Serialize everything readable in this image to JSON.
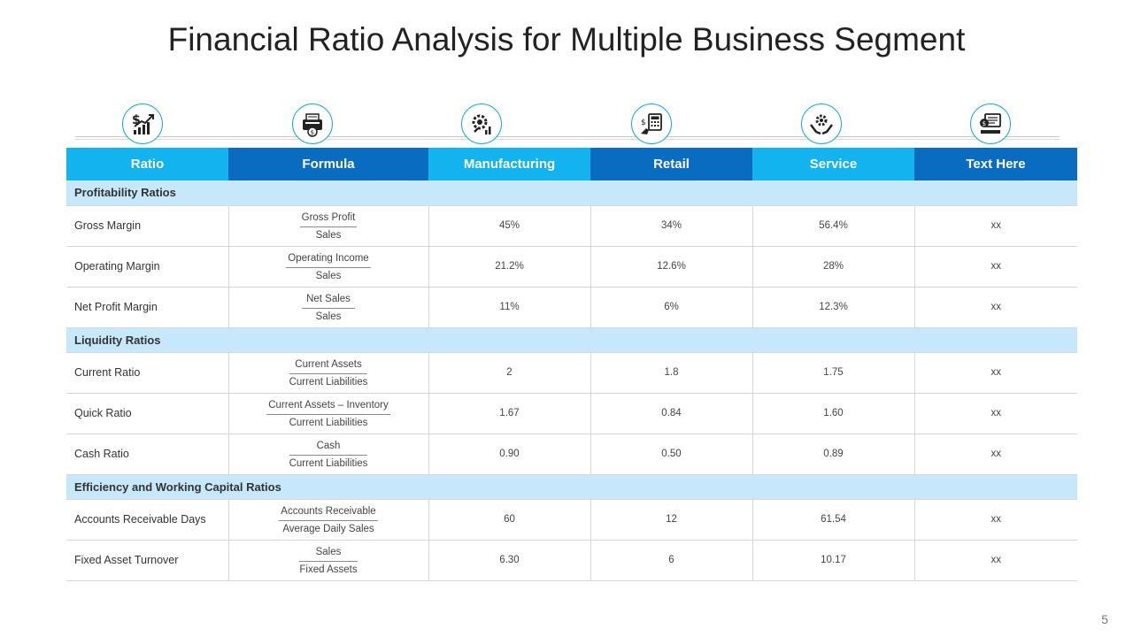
{
  "slide": {
    "title": "Financial Ratio Analysis for Multiple Business Segment",
    "page_number": "5"
  },
  "icons": [
    "dollar-growth-icon",
    "cash-register-icon",
    "settings-chart-icon",
    "calculator-hand-icon",
    "gear-hand-icon",
    "monitor-money-icon"
  ],
  "table": {
    "headers": [
      "Ratio",
      "Formula",
      "Manufacturing",
      "Retail",
      "Service",
      "Text Here"
    ],
    "sections": [
      {
        "title": "Profitability Ratios",
        "rows": [
          {
            "name": "Gross Margin",
            "numerator": "Gross Profit",
            "denominator": "Sales",
            "manufacturing": "45%",
            "retail": "34%",
            "service": "56.4%",
            "other": "xx"
          },
          {
            "name": "Operating Margin",
            "numerator": "Operating Income",
            "denominator": "Sales",
            "manufacturing": "21.2%",
            "retail": "12.6%",
            "service": "28%",
            "other": "xx"
          },
          {
            "name": "Net Profit Margin",
            "numerator": "Net Sales",
            "denominator": "Sales",
            "manufacturing": "11%",
            "retail": "6%",
            "service": "12.3%",
            "other": "xx"
          }
        ]
      },
      {
        "title": "Liquidity Ratios",
        "rows": [
          {
            "name": "Current Ratio",
            "numerator": "Current Assets",
            "denominator": "Current Liabilities",
            "manufacturing": "2",
            "retail": "1.8",
            "service": "1.75",
            "other": "xx"
          },
          {
            "name": "Quick Ratio",
            "numerator": "Current Assets – Inventory",
            "denominator": "Current Liabilities",
            "manufacturing": "1.67",
            "retail": "0.84",
            "service": "1.60",
            "other": "xx"
          },
          {
            "name": "Cash Ratio",
            "numerator": "Cash",
            "denominator": "Current Liabilities",
            "manufacturing": "0.90",
            "retail": "0.50",
            "service": "0.89",
            "other": "xx"
          }
        ]
      },
      {
        "title": "Efficiency and Working Capital Ratios",
        "rows": [
          {
            "name": "Accounts Receivable Days",
            "numerator": "Accounts Receivable",
            "denominator": "Average Daily Sales",
            "manufacturing": "60",
            "retail": "12",
            "service": "61.54",
            "other": "xx"
          },
          {
            "name": "Fixed Asset Turnover",
            "numerator": "Sales",
            "denominator": "Fixed Assets",
            "manufacturing": "6.30",
            "retail": "6",
            "service": "10.17",
            "other": "xx"
          }
        ]
      }
    ]
  },
  "colors": {
    "header_light": "#12b3ee",
    "header_dark": "#0a6cc1",
    "section_band": "#c7e7fa",
    "icon_ring": "#1aa7e8"
  }
}
